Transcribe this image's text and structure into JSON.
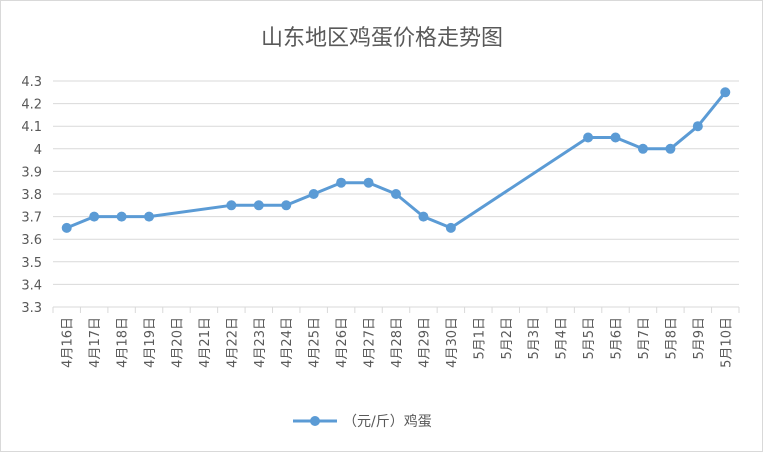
{
  "chart_data": {
    "type": "line",
    "title": "山东地区鸡蛋价格走势图",
    "categories": [
      "4月16日",
      "4月17日",
      "4月18日",
      "4月19日",
      "4月20日",
      "4月21日",
      "4月22日",
      "4月23日",
      "4月24日",
      "4月25日",
      "4月26日",
      "4月27日",
      "4月28日",
      "4月29日",
      "4月30日",
      "5月1日",
      "5月2日",
      "5月3日",
      "5月4日",
      "5月5日",
      "5月6日",
      "5月7日",
      "5月8日",
      "5月9日",
      "5月10日"
    ],
    "series": [
      {
        "name": "（元/斤）鸡蛋",
        "color": "#5b9bd5",
        "values": [
          3.65,
          3.7,
          3.7,
          3.7,
          null,
          null,
          3.75,
          3.75,
          3.75,
          3.8,
          3.85,
          3.85,
          3.8,
          3.7,
          3.65,
          null,
          null,
          null,
          null,
          4.05,
          4.05,
          4.0,
          4.0,
          4.1,
          4.25
        ]
      }
    ],
    "xlabel": "",
    "ylabel": "",
    "ylim": [
      3.3,
      4.3
    ],
    "yticks": [
      "3.3",
      "3.4",
      "3.5",
      "3.6",
      "3.7",
      "3.8",
      "3.9",
      "4",
      "4.1",
      "4.2",
      "4.3"
    ],
    "grid": true,
    "legend": "bottom"
  }
}
